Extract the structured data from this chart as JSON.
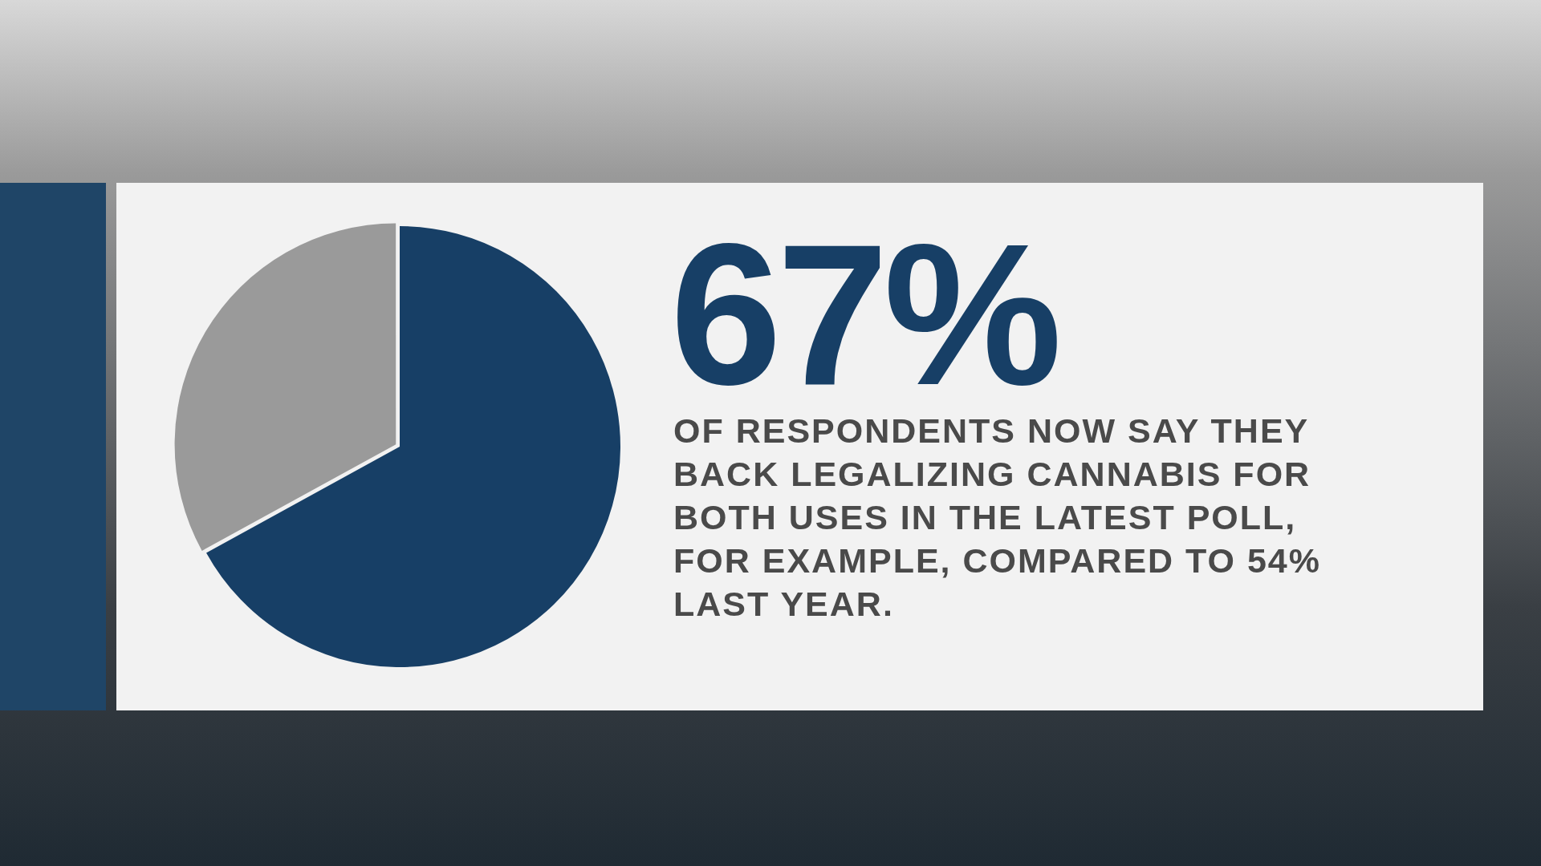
{
  "chart_data": {
    "type": "pie",
    "categories": [
      null,
      null
    ],
    "values": [
      67,
      33
    ],
    "colors": [
      "#173f66",
      "#9a9a9a"
    ],
    "value_labels": [
      "67%",
      null
    ],
    "annotations": [
      "OF RESPONDENTS NOW SAY THEY BACK LEGALIZING CANNABIS FOR BOTH USES IN THE LATEST POLL, FOR EXAMPLE, COMPARED TO 54% LAST YEAR."
    ]
  }
}
